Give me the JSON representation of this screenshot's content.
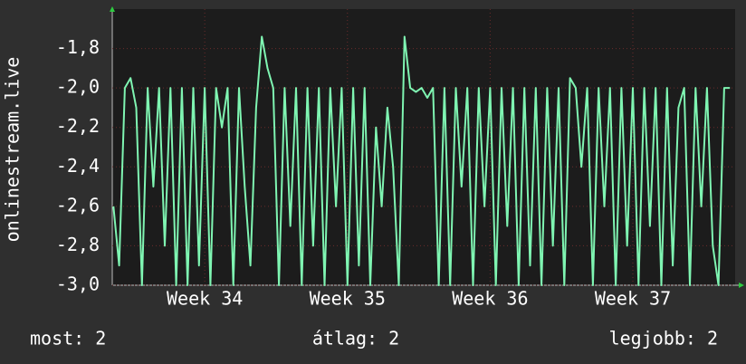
{
  "chart_data": {
    "type": "line",
    "y_label": "onlinestream.live",
    "x": [
      33.36,
      33.4,
      33.44,
      33.48,
      33.52,
      33.56,
      33.6,
      33.64,
      33.68,
      33.72,
      33.76,
      33.8,
      33.84,
      33.88,
      33.92,
      33.96,
      34.0,
      34.04,
      34.08,
      34.12,
      34.16,
      34.2,
      34.24,
      34.28,
      34.32,
      34.36,
      34.4,
      34.44,
      34.48,
      34.52,
      34.56,
      34.6,
      34.64,
      34.68,
      34.72,
      34.76,
      34.8,
      34.84,
      34.88,
      34.92,
      34.96,
      35.0,
      35.04,
      35.08,
      35.12,
      35.16,
      35.2,
      35.24,
      35.28,
      35.32,
      35.36,
      35.4,
      35.44,
      35.48,
      35.52,
      35.56,
      35.6,
      35.64,
      35.68,
      35.72,
      35.76,
      35.8,
      35.84,
      35.88,
      35.92,
      35.96,
      36.0,
      36.04,
      36.08,
      36.12,
      36.16,
      36.2,
      36.24,
      36.28,
      36.32,
      36.36,
      36.4,
      36.44,
      36.48,
      36.52,
      36.56,
      36.6,
      36.64,
      36.68,
      36.72,
      36.76,
      36.8,
      36.84,
      36.88,
      36.92,
      36.96,
      37.0,
      37.04,
      37.08,
      37.12,
      37.16,
      37.2,
      37.24,
      37.28,
      37.32,
      37.36,
      37.4,
      37.44,
      37.48,
      37.52,
      37.56,
      37.6,
      37.64,
      37.68
    ],
    "values": [
      -2.6,
      -2.9,
      -2.0,
      -1.95,
      -2.1,
      -3.0,
      -2.0,
      -2.5,
      -2.0,
      -2.8,
      -2.0,
      -3.0,
      -2.0,
      -3.0,
      -2.0,
      -2.9,
      -2.0,
      -3.0,
      -2.0,
      -2.2,
      -2.0,
      -3.0,
      -2.0,
      -2.5,
      -2.9,
      -2.1,
      -1.74,
      -1.9,
      -2.0,
      -3.0,
      -2.0,
      -2.7,
      -2.0,
      -3.0,
      -2.0,
      -2.8,
      -2.0,
      -3.0,
      -2.0,
      -2.6,
      -2.0,
      -3.0,
      -2.0,
      -2.9,
      -2.0,
      -3.0,
      -2.2,
      -2.6,
      -2.1,
      -2.4,
      -3.0,
      -1.74,
      -2.0,
      -2.02,
      -2.0,
      -2.05,
      -2.0,
      -3.0,
      -2.0,
      -3.0,
      -2.0,
      -2.5,
      -2.0,
      -3.0,
      -2.0,
      -2.6,
      -2.0,
      -3.0,
      -2.0,
      -2.7,
      -2.0,
      -3.0,
      -2.0,
      -2.9,
      -2.0,
      -3.0,
      -2.0,
      -2.8,
      -2.0,
      -3.0,
      -1.95,
      -2.0,
      -2.4,
      -2.0,
      -3.0,
      -2.0,
      -2.6,
      -2.0,
      -3.0,
      -2.0,
      -2.8,
      -2.0,
      -3.0,
      -2.0,
      -2.7,
      -2.0,
      -3.0,
      -2.0,
      -2.9,
      -2.1,
      -2.0,
      -3.0,
      -2.0,
      -2.6,
      -2.0,
      -2.8,
      -3.0,
      -2.0,
      -2.0
    ],
    "color": "#7ff5b2",
    "xlim": [
      33.352,
      37.717
    ],
    "xticks": [
      {
        "value": 34,
        "label": "Week 34"
      },
      {
        "value": 35,
        "label": "Week 35"
      },
      {
        "value": 36,
        "label": "Week 36"
      },
      {
        "value": 37,
        "label": "Week 37"
      }
    ],
    "ylim": [
      -3.0,
      -1.6
    ],
    "yticks": [
      {
        "value": -3.0,
        "label": "-3,0"
      },
      {
        "value": -2.8,
        "label": "-2,8"
      },
      {
        "value": -2.6,
        "label": "-2,6"
      },
      {
        "value": -2.4,
        "label": "-2,4"
      },
      {
        "value": -2.2,
        "label": "-2,2"
      },
      {
        "value": -2.0,
        "label": "-2,0"
      },
      {
        "value": -1.8,
        "label": "-1,8"
      }
    ],
    "grid": true,
    "footer": [
      "most: 2",
      "átlag: 2",
      "legjobb: 2"
    ]
  }
}
